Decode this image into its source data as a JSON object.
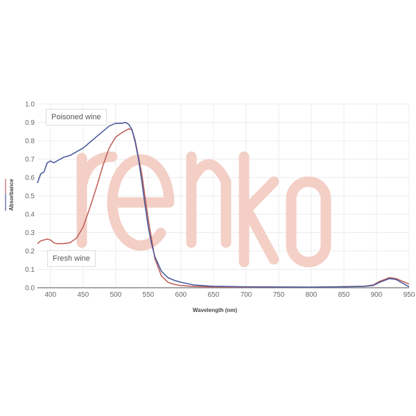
{
  "chart_data": {
    "type": "line",
    "title": "",
    "xlabel": "Wavelength (nm)",
    "ylabel": "Absorbance",
    "xlim": [
      380,
      950
    ],
    "ylim": [
      0,
      1.0
    ],
    "xticks": [
      400,
      450,
      500,
      550,
      600,
      650,
      700,
      750,
      800,
      850,
      900,
      950
    ],
    "yticks": [
      0.0,
      0.1,
      0.2,
      0.3,
      0.4,
      0.5,
      0.6,
      0.7,
      0.8,
      0.9,
      1.0
    ],
    "grid": true,
    "series": [
      {
        "name": "Poisoned wine",
        "color": "#4a5a9c",
        "x": [
          380,
          385,
          390,
          395,
          400,
          405,
          410,
          420,
          430,
          440,
          450,
          460,
          470,
          480,
          490,
          500,
          510,
          515,
          520,
          525,
          530,
          535,
          540,
          545,
          550,
          555,
          560,
          570,
          580,
          590,
          600,
          620,
          650,
          700,
          800,
          850,
          880,
          895,
          905,
          920,
          930,
          940,
          950
        ],
        "y": [
          0.57,
          0.62,
          0.63,
          0.68,
          0.69,
          0.68,
          0.69,
          0.71,
          0.72,
          0.74,
          0.76,
          0.79,
          0.82,
          0.85,
          0.88,
          0.895,
          0.895,
          0.9,
          0.89,
          0.86,
          0.79,
          0.7,
          0.58,
          0.45,
          0.33,
          0.24,
          0.17,
          0.09,
          0.055,
          0.04,
          0.03,
          0.015,
          0.008,
          0.005,
          0.003,
          0.005,
          0.007,
          0.012,
          0.03,
          0.05,
          0.045,
          0.025,
          0.005
        ]
      },
      {
        "name": "Fresh wine",
        "color": "#c0615c",
        "x": [
          380,
          385,
          390,
          395,
          400,
          405,
          410,
          420,
          430,
          440,
          450,
          460,
          470,
          480,
          490,
          500,
          510,
          520,
          525,
          530,
          540,
          550,
          560,
          570,
          580,
          590,
          600,
          620,
          650,
          700,
          800,
          850,
          880,
          895,
          905,
          920,
          930,
          940,
          950
        ],
        "y": [
          0.24,
          0.255,
          0.26,
          0.265,
          0.26,
          0.245,
          0.24,
          0.24,
          0.245,
          0.27,
          0.33,
          0.43,
          0.54,
          0.66,
          0.76,
          0.82,
          0.845,
          0.865,
          0.86,
          0.8,
          0.62,
          0.37,
          0.16,
          0.065,
          0.03,
          0.018,
          0.012,
          0.007,
          0.004,
          0.003,
          0.003,
          0.006,
          0.008,
          0.015,
          0.035,
          0.055,
          0.05,
          0.035,
          0.02
        ]
      }
    ],
    "annotations": [
      "Poisoned wine",
      "Fresh wine"
    ]
  },
  "watermark": {
    "text": "renko",
    "color": "#f3cfc6"
  }
}
